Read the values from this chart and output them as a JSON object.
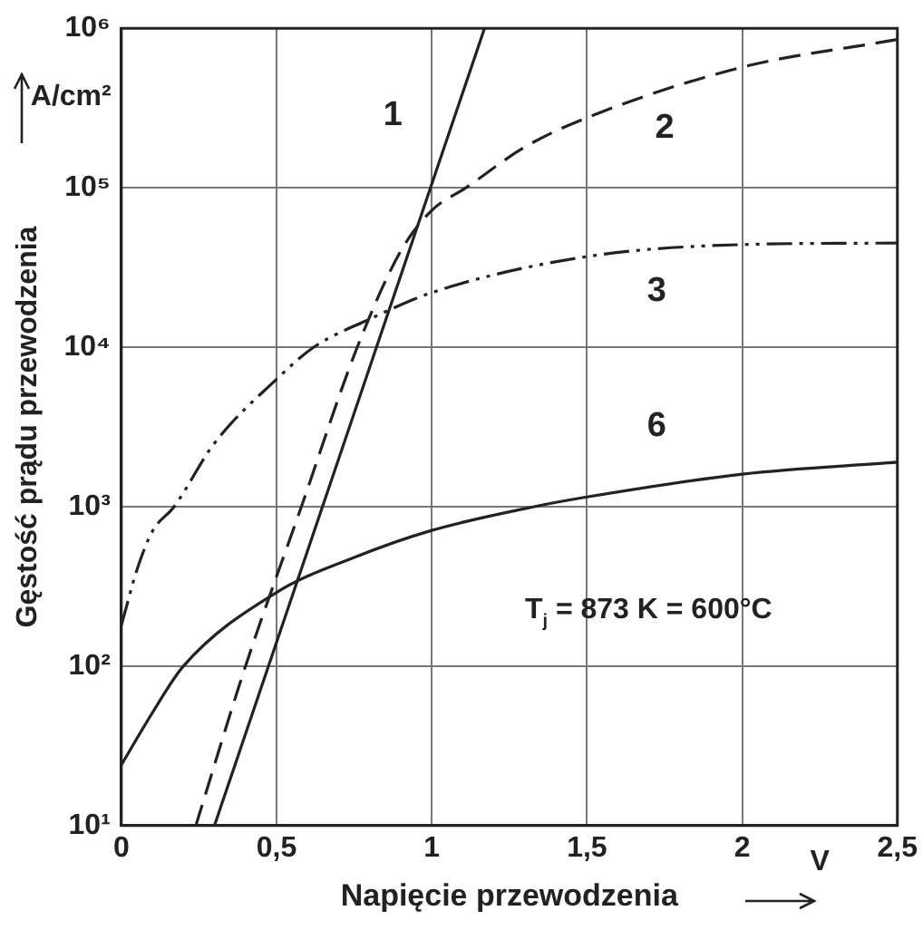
{
  "chart_data": {
    "type": "line",
    "xlabel": "Napięcie przewodzenia",
    "ylabel": "Gęstość prądu przewodzenia",
    "log": "y",
    "xlim": [
      0,
      2.5
    ],
    "ylim": [
      10,
      1000000
    ],
    "xticks": [
      0,
      {
        "value": 0.5,
        "label": "0,5"
      },
      1,
      {
        "value": 1.5,
        "label": "1,5"
      },
      2,
      {
        "value": 2.5,
        "label": "2,5"
      }
    ],
    "yticks": [
      {
        "value": 10,
        "label": "10¹"
      },
      {
        "value": 100,
        "label": "10²"
      },
      {
        "value": 1000,
        "label": "10³"
      },
      {
        "value": 10000,
        "label": "10⁴"
      },
      {
        "value": 100000,
        "label": "10⁵"
      },
      {
        "value": 1000000,
        "label": "10⁶"
      }
    ],
    "grid": true,
    "legend": false,
    "marker": "none",
    "series": [
      {
        "color": "#222222",
        "line_style": "solid",
        "x": [
          0.3,
          1.17
        ],
        "values": [
          10,
          1000000
        ]
      },
      {
        "color": "#222222",
        "line_style": "dashed",
        "x": [
          0.24,
          0.4,
          0.58,
          0.76,
          0.9,
          1.0,
          1.11,
          1.3,
          1.5,
          2.0,
          2.5
        ],
        "values": [
          10,
          100,
          1000,
          10000,
          40000,
          72000,
          100000,
          180000,
          275000,
          570000,
          850000
        ]
      },
      {
        "color": "#222222",
        "line_style": "dashdot",
        "x": [
          0,
          0.05,
          0.1,
          0.17,
          0.3,
          0.5,
          0.62,
          0.8,
          1.0,
          1.5,
          2.0,
          2.5
        ],
        "values": [
          180,
          400,
          700,
          1000,
          2500,
          6300,
          10000,
          15000,
          22000,
          37000,
          44000,
          45000
        ]
      },
      {
        "color": "#222222",
        "line_style": "solid",
        "x": [
          0,
          0.1,
          0.2,
          0.5,
          0.75,
          1.0,
          1.33,
          1.5,
          2.0,
          2.5
        ],
        "values": [
          24,
          51,
          100,
          290,
          480,
          710,
          1000,
          1150,
          1600,
          1900
        ]
      }
    ],
    "annotations": [
      "1",
      "2",
      "3",
      "6",
      "T$_{j}$ = 873 K = 600°C",
      "A/cm²",
      "V"
    ]
  }
}
